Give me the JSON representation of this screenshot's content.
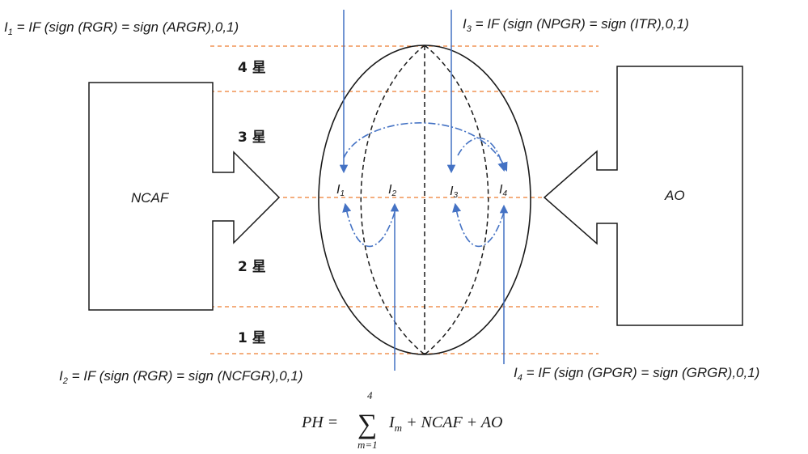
{
  "formulas": {
    "i1": {
      "sym": "I",
      "sub": "1",
      "rest": " = IF (sign (RGR) = sign (ARGR),0,1)"
    },
    "i2": {
      "sym": "I",
      "sub": "2",
      "rest": " = IF (sign (RGR) = sign (NCFGR),0,1)"
    },
    "i3": {
      "sym": "I",
      "sub": "3",
      "rest": " = IF (sign (NPGR) = sign (ITR),0,1)"
    },
    "i4": {
      "sym": "I",
      "sub": "4",
      "rest": " = IF (sign (GPGR) = sign (GRGR),0,1)"
    }
  },
  "star_levels": {
    "s4": "4 星",
    "s3": "3 星",
    "s2": "2 星",
    "s1": "1 星"
  },
  "left_block": {
    "label": "NCAF"
  },
  "right_block": {
    "label": "AO"
  },
  "indicators": [
    {
      "sym": "I",
      "sub": "1"
    },
    {
      "sym": "I",
      "sub": "2"
    },
    {
      "sym": "I",
      "sub": "3"
    },
    {
      "sym": "I",
      "sub": "4"
    }
  ],
  "equation": {
    "lhs": "PH =",
    "sum_top": "4",
    "sum_symbol": "∑",
    "sum_bottom": "m=1",
    "term": "I",
    "term_sub": "m",
    "rest": " + NCAF + AO"
  },
  "colors": {
    "arrow_blue": "#4472c4",
    "guide_orange": "#ed7d31",
    "outline": "#1a1a1a"
  }
}
